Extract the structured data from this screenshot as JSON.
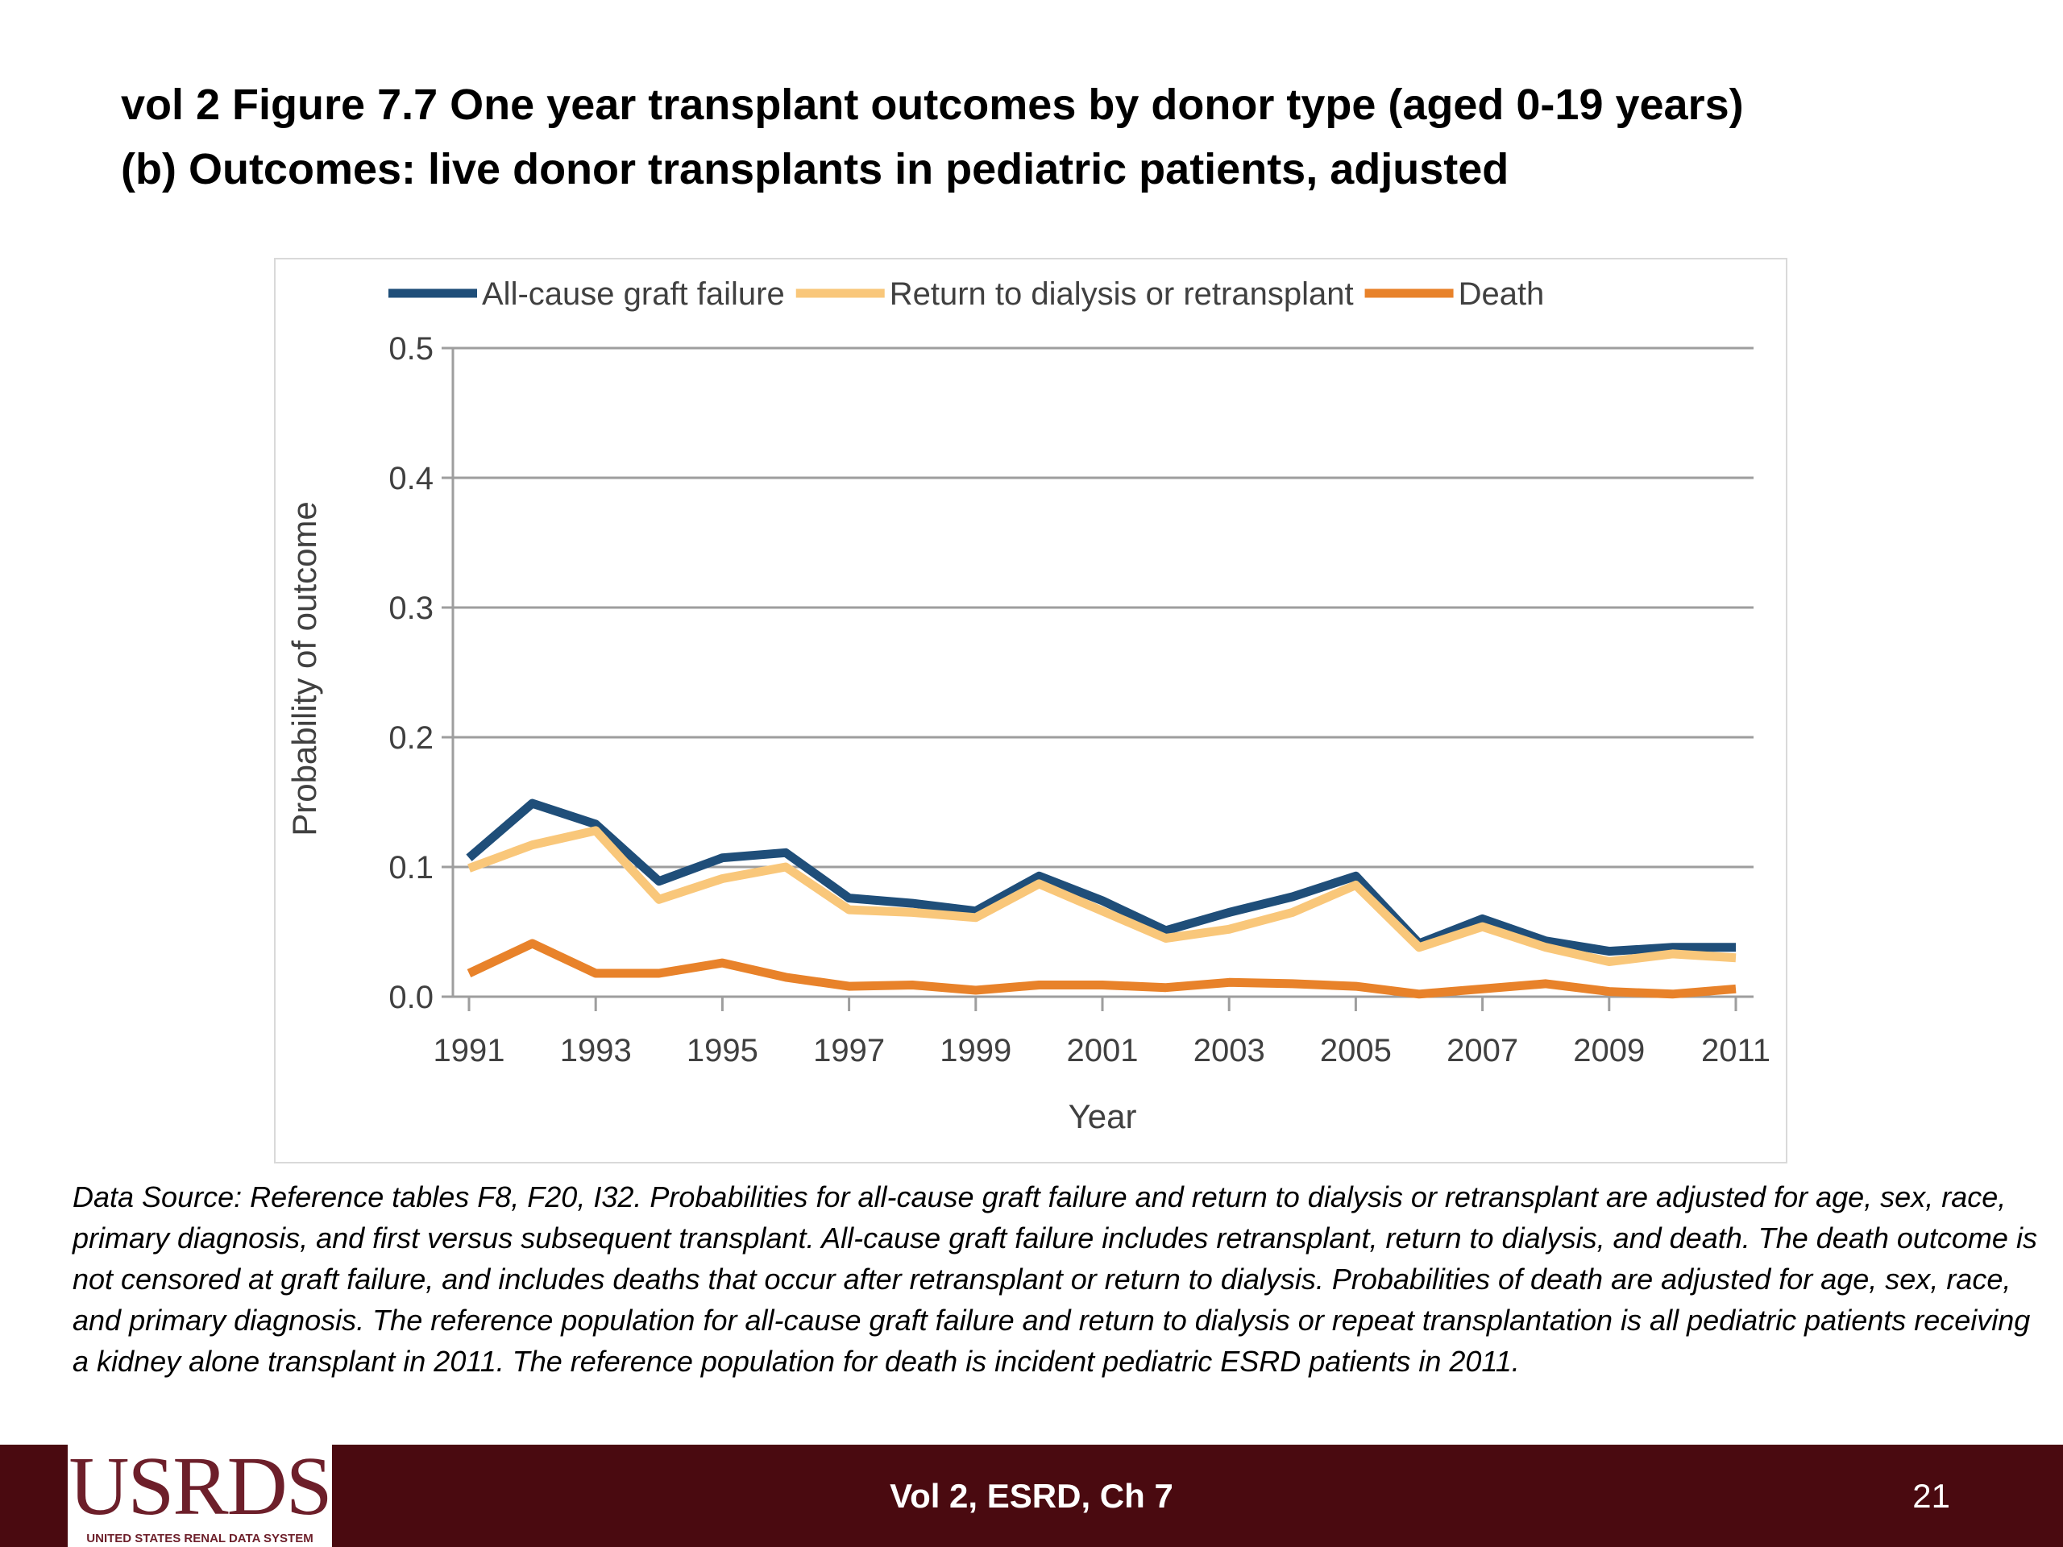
{
  "slide": {
    "title_line1": "vol 2 Figure 7.7 One year transplant outcomes by donor type (aged 0-19 years)",
    "title_line2": "(b) Outcomes: live donor transplants in pediatric patients, adjusted",
    "source_note": "Data Source: Reference tables F8, F20, I32. Probabilities for all-cause graft failure and return to dialysis or retransplant are adjusted for age, sex, race, primary diagnosis, and first versus subsequent transplant. All-cause graft failure includes retransplant, return to dialysis, and death. The death outcome is not censored at graft failure, and includes deaths that occur after retransplant or return to dialysis. Probabilities of death are adjusted for age, sex, race, and primary diagnosis. The reference population for all-cause graft failure and return to dialysis or repeat transplantation is all pediatric patients receiving a kidney alone transplant in 2011. The reference population for death is incident pediatric ESRD patients in 2011.",
    "footer_label": "Vol 2, ESRD, Ch 7",
    "page_number": "21",
    "logo_text": "USRDS",
    "logo_subtext": "UNITED STATES RENAL DATA SYSTEM",
    "footer_color": "#4a0a10"
  },
  "chart_data": {
    "type": "line",
    "title": "",
    "xlabel": "Year",
    "ylabel": "Probability of outcome",
    "x": [
      1991,
      1992,
      1993,
      1994,
      1995,
      1996,
      1997,
      1998,
      1999,
      2000,
      2001,
      2002,
      2003,
      2004,
      2005,
      2006,
      2007,
      2008,
      2009,
      2010,
      2011
    ],
    "x_tick_labels": [
      "1991",
      "1993",
      "1995",
      "1997",
      "1999",
      "2001",
      "2003",
      "2005",
      "2007",
      "2009",
      "2011"
    ],
    "y_tick_labels": [
      "0.0",
      "0.1",
      "0.2",
      "0.3",
      "0.4",
      "0.5"
    ],
    "ylim": [
      0,
      0.5
    ],
    "grid": "horizontal",
    "legend_position": "top",
    "series": [
      {
        "name": "All-cause graft failure",
        "color": "#1f4e79",
        "values": [
          0.107,
          0.149,
          0.133,
          0.089,
          0.107,
          0.111,
          0.076,
          0.072,
          0.066,
          0.093,
          0.074,
          0.051,
          0.065,
          0.077,
          0.093,
          0.041,
          0.06,
          0.043,
          0.035,
          0.038,
          0.038
        ]
      },
      {
        "name": "Return to dialysis or retransplant",
        "color": "#f9c77a",
        "values": [
          0.099,
          0.117,
          0.128,
          0.075,
          0.091,
          0.1,
          0.067,
          0.065,
          0.061,
          0.087,
          0.066,
          0.045,
          0.052,
          0.065,
          0.086,
          0.038,
          0.054,
          0.038,
          0.027,
          0.033,
          0.03
        ]
      },
      {
        "name": "Death",
        "color": "#e8822a",
        "values": [
          0.018,
          0.041,
          0.018,
          0.018,
          0.026,
          0.015,
          0.008,
          0.009,
          0.005,
          0.009,
          0.009,
          0.007,
          0.011,
          0.01,
          0.008,
          0.002,
          0.006,
          0.01,
          0.004,
          0.002,
          0.006
        ]
      }
    ]
  }
}
